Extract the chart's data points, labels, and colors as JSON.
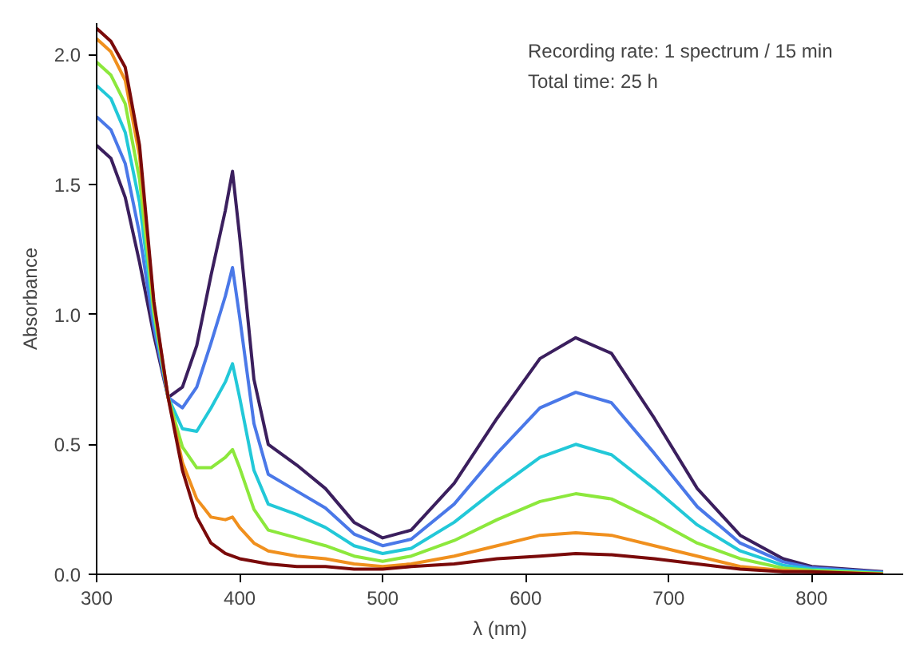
{
  "chart_data": {
    "type": "line",
    "xlabel": "λ (nm)",
    "ylabel": "Absorbance",
    "annotations": [
      "Recording rate: 1 spectrum / 15 min",
      "Total time: 25 h"
    ],
    "x": [
      300,
      310,
      320,
      330,
      340,
      350,
      360,
      370,
      380,
      390,
      395,
      400,
      410,
      420,
      440,
      460,
      480,
      500,
      520,
      550,
      580,
      610,
      635,
      660,
      690,
      720,
      750,
      780,
      800,
      850
    ],
    "series": [
      {
        "color": "#3b1f5e",
        "values": [
          1.65,
          1.6,
          1.45,
          1.2,
          0.92,
          0.68,
          0.72,
          0.88,
          1.15,
          1.4,
          1.55,
          1.3,
          0.75,
          0.5,
          0.42,
          0.33,
          0.2,
          0.14,
          0.17,
          0.35,
          0.6,
          0.83,
          0.91,
          0.85,
          0.6,
          0.33,
          0.15,
          0.06,
          0.03,
          0.01
        ]
      },
      {
        "color": "#4a78e8",
        "values": [
          1.76,
          1.71,
          1.58,
          1.31,
          0.95,
          0.68,
          0.64,
          0.72,
          0.89,
          1.07,
          1.18,
          0.99,
          0.58,
          0.385,
          0.32,
          0.255,
          0.155,
          0.11,
          0.135,
          0.27,
          0.465,
          0.64,
          0.7,
          0.66,
          0.465,
          0.26,
          0.12,
          0.048,
          0.025,
          0.008
        ]
      },
      {
        "color": "#22c8d8",
        "values": [
          1.88,
          1.83,
          1.7,
          1.43,
          0.99,
          0.68,
          0.56,
          0.55,
          0.64,
          0.74,
          0.81,
          0.68,
          0.4,
          0.27,
          0.23,
          0.18,
          0.11,
          0.08,
          0.1,
          0.2,
          0.33,
          0.45,
          0.5,
          0.46,
          0.33,
          0.19,
          0.09,
          0.035,
          0.02,
          0.005
        ]
      },
      {
        "color": "#8ce83c",
        "values": [
          1.97,
          1.92,
          1.81,
          1.52,
          1.01,
          0.68,
          0.49,
          0.41,
          0.41,
          0.45,
          0.48,
          0.41,
          0.25,
          0.17,
          0.14,
          0.11,
          0.07,
          0.05,
          0.07,
          0.13,
          0.21,
          0.28,
          0.31,
          0.29,
          0.21,
          0.12,
          0.06,
          0.024,
          0.015,
          0.003
        ]
      },
      {
        "color": "#f0901e",
        "values": [
          2.06,
          2.01,
          1.9,
          1.61,
          1.04,
          0.68,
          0.43,
          0.29,
          0.22,
          0.21,
          0.22,
          0.18,
          0.12,
          0.09,
          0.07,
          0.06,
          0.04,
          0.03,
          0.04,
          0.07,
          0.11,
          0.15,
          0.16,
          0.15,
          0.11,
          0.07,
          0.03,
          0.015,
          0.01,
          0.001
        ]
      },
      {
        "color": "#7a0a0a",
        "values": [
          2.1,
          2.05,
          1.95,
          1.65,
          1.05,
          0.68,
          0.4,
          0.22,
          0.12,
          0.08,
          0.07,
          0.06,
          0.05,
          0.04,
          0.03,
          0.03,
          0.02,
          0.02,
          0.03,
          0.04,
          0.06,
          0.07,
          0.08,
          0.075,
          0.06,
          0.04,
          0.02,
          0.01,
          0.01,
          0.0
        ]
      }
    ],
    "xlim": [
      300,
      864
    ],
    "ylim": [
      0,
      2.12
    ],
    "xticks": [
      300,
      400,
      500,
      600,
      700,
      800
    ],
    "yticks": [
      {
        "value": 0,
        "label": "0.0"
      },
      {
        "value": 0.5,
        "label": "0.5"
      },
      {
        "value": 1,
        "label": "1.0"
      },
      {
        "value": 1.5,
        "label": "1.5"
      },
      {
        "value": 2,
        "label": "2.0"
      }
    ],
    "grid": false,
    "marker": "none",
    "line_style": "solid"
  }
}
